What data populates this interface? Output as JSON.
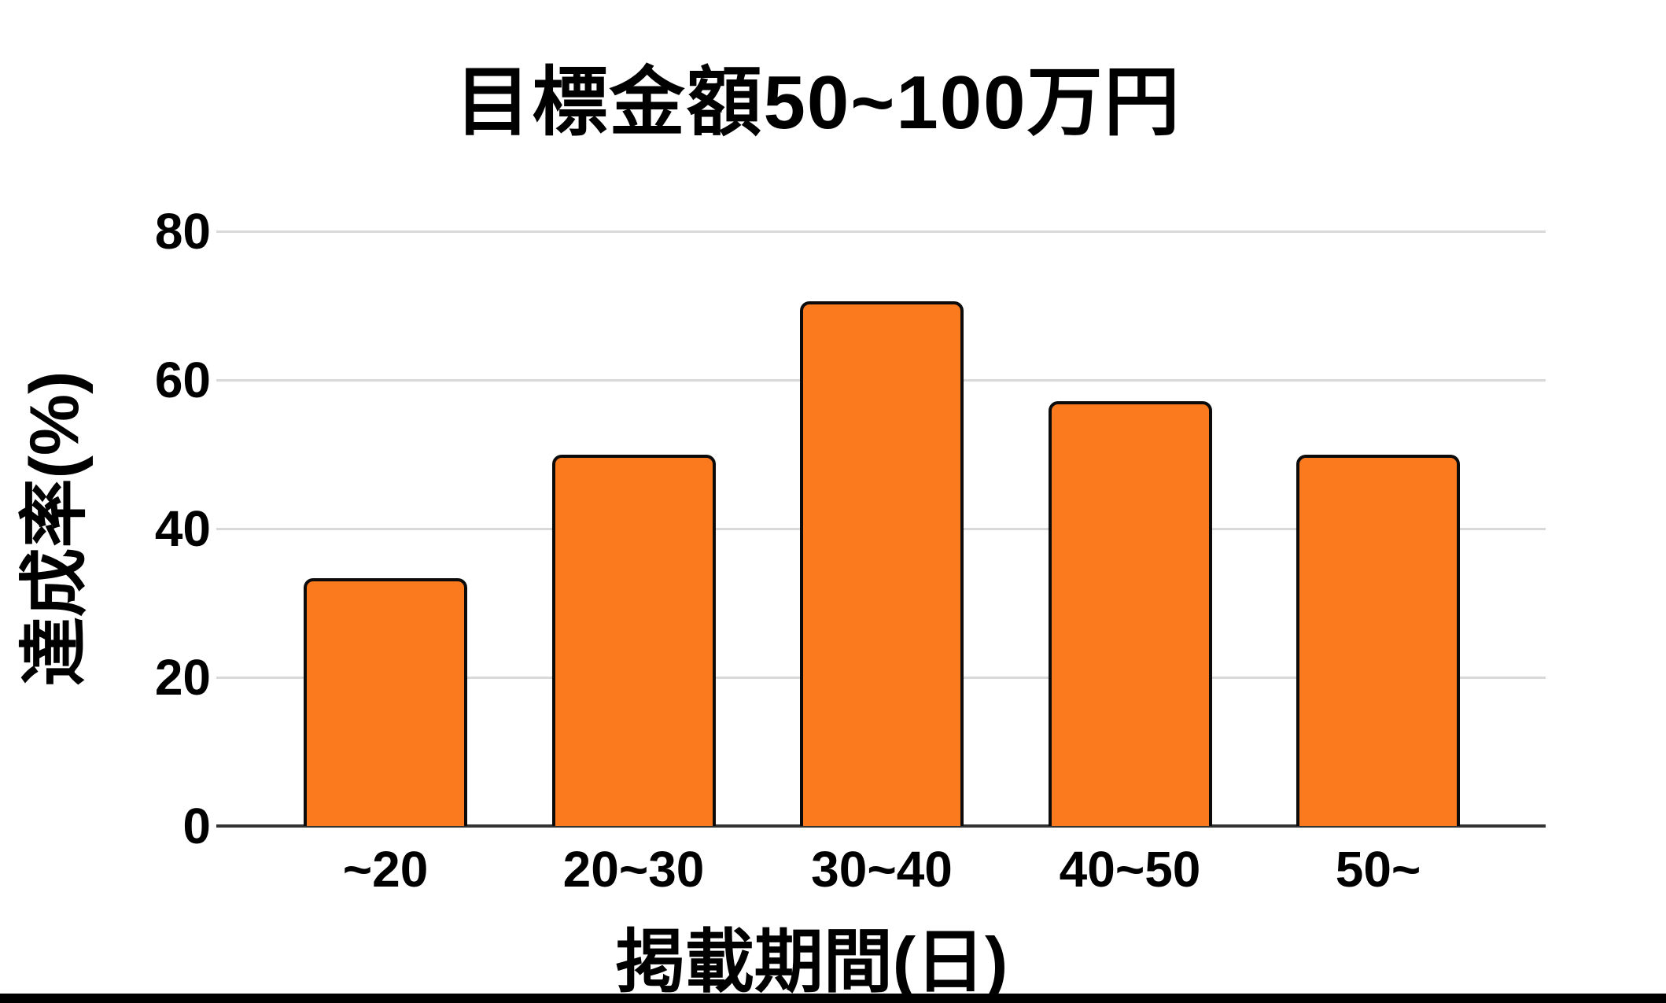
{
  "chart_data": {
    "type": "bar",
    "title": "目標金額50~100万円",
    "xlabel": "掲載期間(日)",
    "ylabel": "達成率(%)",
    "categories": [
      "~20",
      "20~30",
      "30~40",
      "40~50",
      "50~"
    ],
    "values": [
      33.3,
      50,
      70.6,
      57.1,
      50
    ],
    "yticks": [
      0,
      20,
      40,
      60,
      80
    ],
    "ylim": [
      0,
      80
    ],
    "grid": true,
    "legend_position": "none",
    "colors": {
      "bar_fill": "#FB7A1E",
      "bar_border": "#0B0B0B",
      "gridline": "#D9D9D9",
      "axis_line": "#333333",
      "text": "#000000",
      "background": "#FFFFFF",
      "bottom_strip": "#000000"
    }
  }
}
